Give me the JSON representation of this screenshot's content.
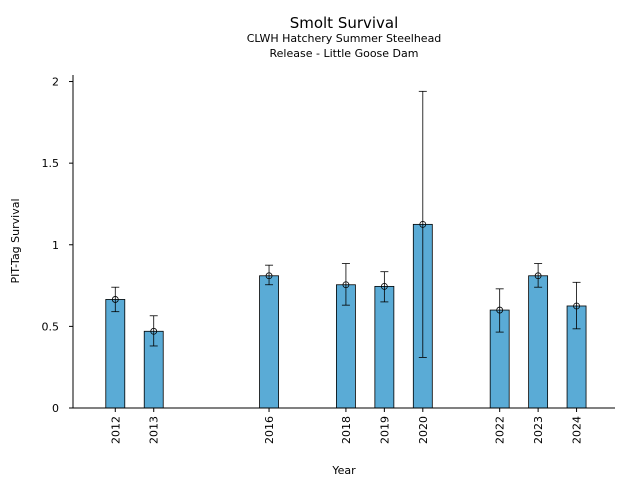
{
  "chart_data": {
    "type": "bar",
    "title": "Smolt Survival",
    "subtitle_lines": [
      "CLWH Hatchery Summer Steelhead",
      "Release - Little Goose Dam"
    ],
    "xlabel": "Year",
    "ylabel": "PIT-Tag Survival",
    "x_range": [
      2010.9,
      2025.0
    ],
    "ylim": [
      0,
      2.04
    ],
    "yticks": [
      {
        "value": 0,
        "label": "0"
      },
      {
        "value": 0.5,
        "label": "0.5"
      },
      {
        "value": 1,
        "label": "1"
      },
      {
        "value": 1.5,
        "label": "1.5"
      },
      {
        "value": 2,
        "label": "2"
      }
    ],
    "bar_color": "#5aabd6",
    "data": [
      {
        "year": 2012,
        "label": "2012",
        "value": 0.665,
        "lower": 0.59,
        "upper": 0.74
      },
      {
        "year": 2013,
        "label": "2013",
        "value": 0.47,
        "lower": 0.38,
        "upper": 0.565
      },
      {
        "year": 2016,
        "label": "2016",
        "value": 0.81,
        "lower": 0.755,
        "upper": 0.875
      },
      {
        "year": 2018,
        "label": "2018",
        "value": 0.755,
        "lower": 0.63,
        "upper": 0.885
      },
      {
        "year": 2019,
        "label": "2019",
        "value": 0.745,
        "lower": 0.65,
        "upper": 0.835
      },
      {
        "year": 2020,
        "label": "2020",
        "value": 1.125,
        "lower": 0.31,
        "upper": 1.94
      },
      {
        "year": 2022,
        "label": "2022",
        "value": 0.6,
        "lower": 0.465,
        "upper": 0.73
      },
      {
        "year": 2023,
        "label": "2023",
        "value": 0.81,
        "lower": 0.74,
        "upper": 0.885
      },
      {
        "year": 2024,
        "label": "2024",
        "value": 0.625,
        "lower": 0.485,
        "upper": 0.77
      }
    ]
  }
}
